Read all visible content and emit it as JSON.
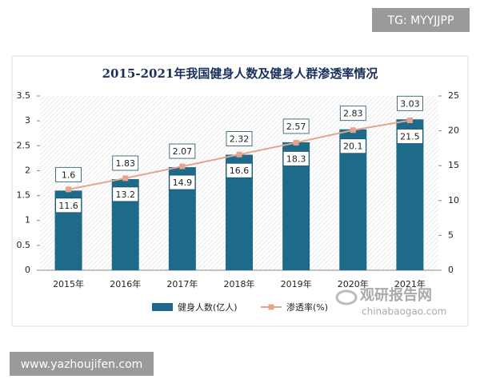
{
  "chart_data": {
    "type": "bar",
    "title": "2015-2021年我国健身人数及健身人群渗透率情况",
    "categories": [
      "2015年",
      "2016年",
      "2017年",
      "2018年",
      "2019年",
      "2020年",
      "2021年"
    ],
    "series": [
      {
        "name": "健身人数(亿人)",
        "color": "#1d6a8a",
        "values": [
          1.6,
          1.83,
          2.07,
          2.32,
          2.57,
          2.83,
          3.03
        ]
      },
      {
        "name": "渗透率(%)",
        "color": "#e4a48e",
        "axis": "y2",
        "type": "line",
        "values": [
          11.6,
          13.2,
          14.9,
          16.6,
          18.3,
          20.1,
          21.5
        ]
      }
    ],
    "ylim": [
      0,
      3.5
    ],
    "yticks": [
      0,
      0.5,
      1,
      1.5,
      2,
      2.5,
      3,
      3.5
    ],
    "y2lim": [
      0,
      25
    ],
    "y2ticks": [
      0,
      5,
      10,
      15,
      20,
      25
    ],
    "legend": "bottom"
  },
  "watermarks": {
    "top": "TG: MYYJJPP",
    "bottom": "www.yazhoujifen.com",
    "logo": "观研报告网",
    "logo_url": "chinabaogao.com"
  }
}
